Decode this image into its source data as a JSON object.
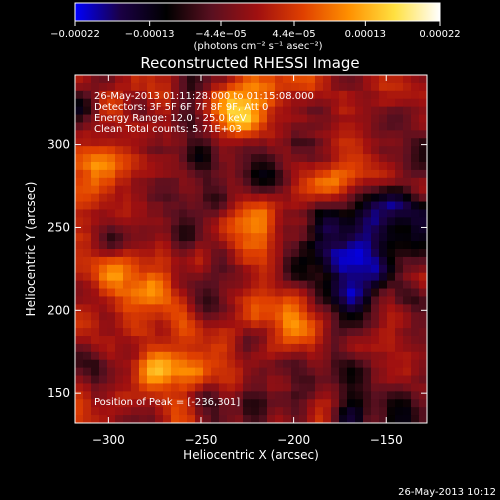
{
  "chart_data": {
    "type": "heatmap",
    "title": "Reconstructed RHESSI Image",
    "xlabel": "Heliocentric X (arcsec)",
    "ylabel": "Heliocentric Y (arcsec)",
    "xlim": [
      -318,
      -128
    ],
    "ylim": [
      132,
      342
    ],
    "x_ticks": [
      -300,
      -250,
      -200,
      -150
    ],
    "x_tick_labels": [
      "−300",
      "−250",
      "−200",
      "−150"
    ],
    "y_ticks": [
      150,
      200,
      250,
      300
    ],
    "y_tick_labels": [
      "150",
      "200",
      "250",
      "300"
    ],
    "colorbar": {
      "range": [
        -0.00022,
        0.00022
      ],
      "ticks": [
        -0.00022,
        -0.00013,
        -4.4e-05,
        4.4e-05,
        0.00013,
        0.00022
      ],
      "tick_labels": [
        "−0.00022",
        "−0.00013",
        "−4.4e−05",
        "4.4e−05",
        "0.00013",
        "0.00022"
      ],
      "unit_label": "(photons cm⁻² s⁻¹ asec⁻²)",
      "colormap": [
        "#0000ff",
        "#1a0044",
        "#000000",
        "#5a1020",
        "#a01010",
        "#e04000",
        "#ff9000",
        "#ffe040",
        "#ffffff"
      ]
    },
    "annotations": [
      "26-May-2013 01:11:28.000 to 01:15:08.000",
      "Detectors: 3F 5F 6F 7F 8F 9F, Att 0",
      "Energy Range: 12.0 - 25.0 keV",
      "Clean     Total counts: 5.71E+03"
    ],
    "peak_label": "Position of Peak = [-236,301]",
    "peak": [
      -236,
      301
    ],
    "grid": false,
    "legend": "none"
  },
  "footer": {
    "timestamp": "26-May-2013 10:12"
  }
}
